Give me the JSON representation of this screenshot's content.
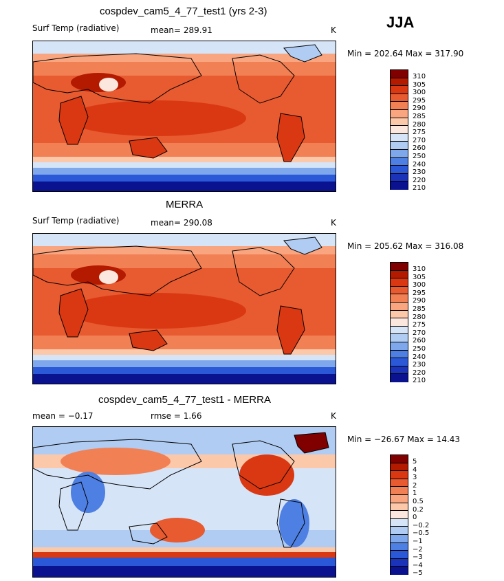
{
  "season": "JJA",
  "panels": [
    {
      "title": "cospdev_cam5_4_77_test1 (yrs 2-3)",
      "left": "Surf Temp (radiative)",
      "mid": "mean= 289.91",
      "unit": "K",
      "minmax": "Min = 202.64 Max = 317.90",
      "colorbar": [
        "310",
        "305",
        "300",
        "295",
        "290",
        "285",
        "280",
        "275",
        "270",
        "260",
        "250",
        "240",
        "230",
        "220",
        "210"
      ]
    },
    {
      "title": "MERRA",
      "left": "Surf Temp (radiative)",
      "mid": "mean= 290.08",
      "unit": "K",
      "minmax": "Min = 205.62 Max = 316.08",
      "colorbar": [
        "310",
        "305",
        "300",
        "295",
        "290",
        "285",
        "280",
        "275",
        "270",
        "260",
        "250",
        "240",
        "230",
        "220",
        "210"
      ]
    },
    {
      "title": "cospdev_cam5_4_77_test1 - MERRA",
      "left": "mean =  −0.17",
      "mid": "rmse =    1.66",
      "unit": "K",
      "minmax": "Min = −26.67 Max =  14.43",
      "colorbar": [
        "5",
        "4",
        "3",
        "2",
        "1",
        "0.5",
        "0.2",
        "0",
        "−0.2",
        "−0.5",
        "−1",
        "−2",
        "−3",
        "−4",
        "−5"
      ]
    }
  ],
  "colors": {
    "scale": [
      "#800000",
      "#b31a00",
      "#d93813",
      "#e85a30",
      "#f28055",
      "#f9a57f",
      "#fcc8aa",
      "#fbe7dd",
      "#d6e4f7",
      "#b0ccf2",
      "#7ea7ec",
      "#4e7fe2",
      "#2b58d6",
      "#1a33b8",
      "#0a1290",
      "#050a66"
    ]
  }
}
